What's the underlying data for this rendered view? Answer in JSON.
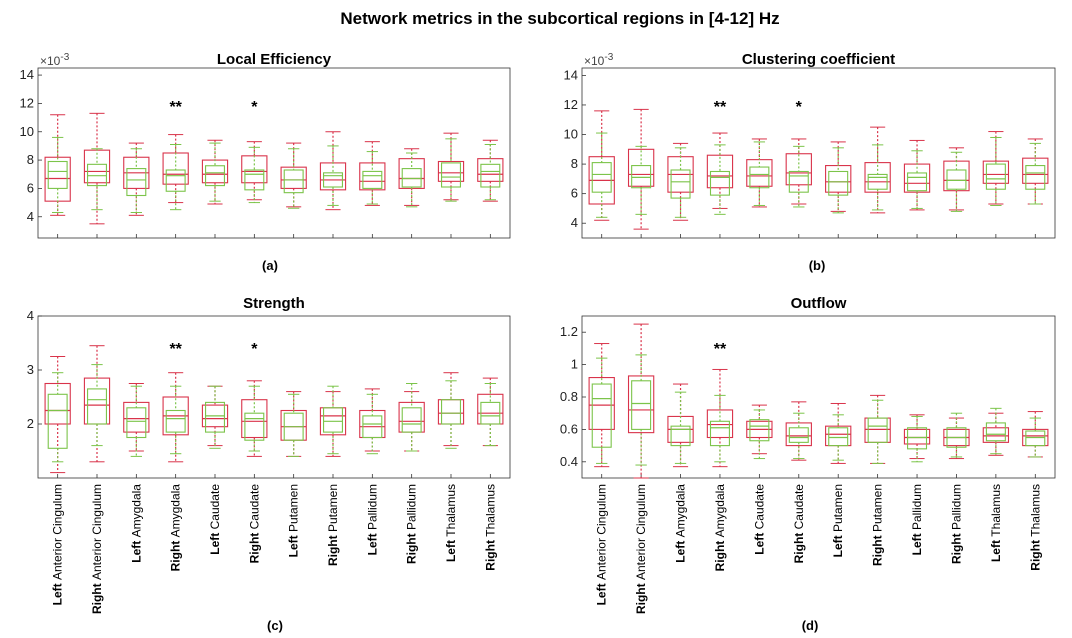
{
  "figure": {
    "title": "Network metrics in the subcortical regions in [4-12] Hz",
    "colors": {
      "red": "#d9334a",
      "green": "#7cc44a",
      "axis": "#333333"
    }
  },
  "categories": [
    {
      "bold": "Left",
      "rest": "Anterior Cingulum"
    },
    {
      "bold": "Right",
      "rest": "Anterior Cingulum"
    },
    {
      "bold": "Left",
      "rest": "Amygdala"
    },
    {
      "bold": "Right",
      "rest": "Amygdala"
    },
    {
      "bold": "Left",
      "rest": "Caudate"
    },
    {
      "bold": "Right",
      "rest": "Caudate"
    },
    {
      "bold": "Left",
      "rest": "Putamen"
    },
    {
      "bold": "Right",
      "rest": "Putamen"
    },
    {
      "bold": "Left",
      "rest": "Pallidum"
    },
    {
      "bold": "Right",
      "rest": "Pallidum"
    },
    {
      "bold": "Left",
      "rest": "Thalamus"
    },
    {
      "bold": "Right",
      "rest": "Thalamus"
    }
  ],
  "chart_data": [
    {
      "type": "box",
      "title": "Local Efficiency",
      "panel_label": "(a)",
      "multiplier": "×10",
      "multiplier_exp": "-3",
      "ylim": [
        2.5,
        14.5
      ],
      "yticks": [
        4,
        6,
        8,
        10,
        12,
        14
      ],
      "significance": [
        {
          "index": 3,
          "text": "**"
        },
        {
          "index": 5,
          "text": "*"
        }
      ],
      "series": [
        {
          "group": "red",
          "boxes": [
            {
              "min": 4.1,
              "q1": 5.1,
              "median": 6.7,
              "q3": 8.2,
              "max": 11.2
            },
            {
              "min": 3.5,
              "q1": 6.4,
              "median": 7.2,
              "q3": 8.7,
              "max": 11.3
            },
            {
              "min": 4.1,
              "q1": 6.0,
              "median": 7.1,
              "q3": 8.2,
              "max": 9.2
            },
            {
              "min": 5.0,
              "q1": 6.3,
              "median": 7.0,
              "q3": 8.5,
              "max": 9.8
            },
            {
              "min": 4.9,
              "q1": 6.4,
              "median": 7.0,
              "q3": 8.0,
              "max": 9.4
            },
            {
              "min": 5.2,
              "q1": 6.4,
              "median": 7.2,
              "q3": 8.3,
              "max": 9.3
            },
            {
              "min": 4.7,
              "q1": 6.0,
              "median": 6.6,
              "q3": 7.5,
              "max": 9.2
            },
            {
              "min": 4.5,
              "q1": 5.9,
              "median": 6.6,
              "q3": 7.8,
              "max": 10.0
            },
            {
              "min": 4.8,
              "q1": 5.9,
              "median": 6.5,
              "q3": 7.8,
              "max": 9.3
            },
            {
              "min": 4.8,
              "q1": 6.0,
              "median": 6.7,
              "q3": 8.1,
              "max": 8.8
            },
            {
              "min": 5.2,
              "q1": 6.5,
              "median": 7.1,
              "q3": 7.9,
              "max": 9.9
            },
            {
              "min": 5.1,
              "q1": 6.5,
              "median": 7.0,
              "q3": 8.1,
              "max": 9.4
            }
          ]
        },
        {
          "group": "green",
          "boxes": [
            {
              "min": 4.3,
              "q1": 6.0,
              "median": 7.2,
              "q3": 7.9,
              "max": 9.6
            },
            {
              "min": 4.5,
              "q1": 6.2,
              "median": 6.9,
              "q3": 7.7,
              "max": 8.8
            },
            {
              "min": 4.3,
              "q1": 5.5,
              "median": 6.6,
              "q3": 7.4,
              "max": 8.8
            },
            {
              "min": 4.5,
              "q1": 5.8,
              "median": 6.9,
              "q3": 7.3,
              "max": 9.1
            },
            {
              "min": 5.1,
              "q1": 6.2,
              "median": 7.1,
              "q3": 7.6,
              "max": 9.2
            },
            {
              "min": 5.0,
              "q1": 5.9,
              "median": 7.0,
              "q3": 7.3,
              "max": 8.9
            },
            {
              "min": 4.6,
              "q1": 5.7,
              "median": 6.6,
              "q3": 7.3,
              "max": 8.8
            },
            {
              "min": 4.8,
              "q1": 6.1,
              "median": 6.9,
              "q3": 7.1,
              "max": 9.0
            },
            {
              "min": 4.9,
              "q1": 6.0,
              "median": 6.9,
              "q3": 7.2,
              "max": 8.6
            },
            {
              "min": 4.7,
              "q1": 6.1,
              "median": 6.7,
              "q3": 7.4,
              "max": 8.5
            },
            {
              "min": 5.1,
              "q1": 6.1,
              "median": 6.8,
              "q3": 7.8,
              "max": 9.5
            },
            {
              "min": 5.2,
              "q1": 6.1,
              "median": 7.2,
              "q3": 7.7,
              "max": 9.1
            }
          ]
        }
      ]
    },
    {
      "type": "box",
      "title": "Clustering coefficient",
      "panel_label": "(b)",
      "multiplier": "×10",
      "multiplier_exp": "-3",
      "ylim": [
        3,
        14.5
      ],
      "yticks": [
        4,
        6,
        8,
        10,
        12,
        14
      ],
      "significance": [
        {
          "index": 3,
          "text": "**"
        },
        {
          "index": 5,
          "text": "*"
        }
      ],
      "series": [
        {
          "group": "red",
          "boxes": [
            {
              "min": 4.2,
              "q1": 5.3,
              "median": 6.9,
              "q3": 8.5,
              "max": 11.6
            },
            {
              "min": 3.6,
              "q1": 6.5,
              "median": 7.3,
              "q3": 9.0,
              "max": 11.7
            },
            {
              "min": 4.2,
              "q1": 6.1,
              "median": 7.3,
              "q3": 8.5,
              "max": 9.4
            },
            {
              "min": 5.0,
              "q1": 6.4,
              "median": 7.2,
              "q3": 8.6,
              "max": 10.1
            },
            {
              "min": 5.1,
              "q1": 6.5,
              "median": 7.2,
              "q3": 8.3,
              "max": 9.7
            },
            {
              "min": 5.3,
              "q1": 6.6,
              "median": 7.4,
              "q3": 8.7,
              "max": 9.7
            },
            {
              "min": 4.8,
              "q1": 6.1,
              "median": 6.8,
              "q3": 7.9,
              "max": 9.5
            },
            {
              "min": 4.7,
              "q1": 6.1,
              "median": 6.8,
              "q3": 8.1,
              "max": 10.5
            },
            {
              "min": 4.9,
              "q1": 6.1,
              "median": 6.7,
              "q3": 8.0,
              "max": 9.6
            },
            {
              "min": 4.9,
              "q1": 6.2,
              "median": 6.9,
              "q3": 8.2,
              "max": 9.1
            },
            {
              "min": 5.3,
              "q1": 6.7,
              "median": 7.3,
              "q3": 8.2,
              "max": 10.2
            },
            {
              "min": 5.3,
              "q1": 6.7,
              "median": 7.3,
              "q3": 8.4,
              "max": 9.7
            }
          ]
        },
        {
          "group": "green",
          "boxes": [
            {
              "min": 4.4,
              "q1": 6.1,
              "median": 7.3,
              "q3": 8.1,
              "max": 10.1
            },
            {
              "min": 4.6,
              "q1": 6.4,
              "median": 7.1,
              "q3": 7.9,
              "max": 9.2
            },
            {
              "min": 4.4,
              "q1": 5.7,
              "median": 6.8,
              "q3": 7.6,
              "max": 9.1
            },
            {
              "min": 4.6,
              "q1": 5.9,
              "median": 7.1,
              "q3": 7.5,
              "max": 9.3
            },
            {
              "min": 5.2,
              "q1": 6.4,
              "median": 7.3,
              "q3": 7.8,
              "max": 9.5
            },
            {
              "min": 5.1,
              "q1": 6.1,
              "median": 7.2,
              "q3": 7.5,
              "max": 9.2
            },
            {
              "min": 4.7,
              "q1": 5.9,
              "median": 6.8,
              "q3": 7.5,
              "max": 9.1
            },
            {
              "min": 4.9,
              "q1": 6.3,
              "median": 7.1,
              "q3": 7.3,
              "max": 9.3
            },
            {
              "min": 5.0,
              "q1": 6.2,
              "median": 7.1,
              "q3": 7.4,
              "max": 8.9
            },
            {
              "min": 4.8,
              "q1": 6.3,
              "median": 6.9,
              "q3": 7.6,
              "max": 8.8
            },
            {
              "min": 5.2,
              "q1": 6.3,
              "median": 7.0,
              "q3": 8.0,
              "max": 9.8
            },
            {
              "min": 5.3,
              "q1": 6.3,
              "median": 7.4,
              "q3": 7.9,
              "max": 9.4
            }
          ]
        }
      ]
    },
    {
      "type": "box",
      "title": "Strength",
      "panel_label": "(c)",
      "ylim": [
        1,
        4
      ],
      "yticks": [
        2,
        3,
        4
      ],
      "significance": [
        {
          "index": 3,
          "text": "**"
        },
        {
          "index": 5,
          "text": "*"
        }
      ],
      "series": [
        {
          "group": "red",
          "boxes": [
            {
              "min": 1.1,
              "q1": 2.0,
              "median": 2.25,
              "q3": 2.75,
              "max": 3.25
            },
            {
              "min": 1.3,
              "q1": 2.0,
              "median": 2.35,
              "q3": 2.85,
              "max": 3.45
            },
            {
              "min": 1.5,
              "q1": 1.85,
              "median": 2.1,
              "q3": 2.4,
              "max": 2.75
            },
            {
              "min": 1.3,
              "q1": 1.8,
              "median": 2.15,
              "q3": 2.5,
              "max": 2.95
            },
            {
              "min": 1.6,
              "q1": 1.95,
              "median": 2.1,
              "q3": 2.35,
              "max": 2.7
            },
            {
              "min": 1.4,
              "q1": 1.75,
              "median": 2.05,
              "q3": 2.45,
              "max": 2.8
            },
            {
              "min": 1.4,
              "q1": 1.7,
              "median": 1.95,
              "q3": 2.25,
              "max": 2.6
            },
            {
              "min": 1.4,
              "q1": 1.8,
              "median": 2.15,
              "q3": 2.3,
              "max": 2.6
            },
            {
              "min": 1.5,
              "q1": 1.75,
              "median": 1.95,
              "q3": 2.25,
              "max": 2.65
            },
            {
              "min": 1.5,
              "q1": 1.85,
              "median": 2.05,
              "q3": 2.4,
              "max": 2.6
            },
            {
              "min": 1.6,
              "q1": 2.0,
              "median": 2.2,
              "q3": 2.45,
              "max": 2.95
            },
            {
              "min": 1.6,
              "q1": 2.0,
              "median": 2.2,
              "q3": 2.55,
              "max": 2.85
            }
          ]
        },
        {
          "group": "green",
          "boxes": [
            {
              "min": 1.3,
              "q1": 1.55,
              "median": 2.25,
              "q3": 2.55,
              "max": 2.95
            },
            {
              "min": 1.6,
              "q1": 2.0,
              "median": 2.45,
              "q3": 2.65,
              "max": 3.1
            },
            {
              "min": 1.4,
              "q1": 1.75,
              "median": 2.05,
              "q3": 2.3,
              "max": 2.7
            },
            {
              "min": 1.45,
              "q1": 1.85,
              "median": 2.1,
              "q3": 2.25,
              "max": 2.7
            },
            {
              "min": 1.55,
              "q1": 1.85,
              "median": 2.15,
              "q3": 2.4,
              "max": 2.7
            },
            {
              "min": 1.5,
              "q1": 1.7,
              "median": 2.1,
              "q3": 2.2,
              "max": 2.7
            },
            {
              "min": 1.4,
              "q1": 1.7,
              "median": 1.95,
              "q3": 2.2,
              "max": 2.55
            },
            {
              "min": 1.45,
              "q1": 1.85,
              "median": 2.05,
              "q3": 2.3,
              "max": 2.7
            },
            {
              "min": 1.45,
              "q1": 1.75,
              "median": 2.0,
              "q3": 2.15,
              "max": 2.55
            },
            {
              "min": 1.5,
              "q1": 1.85,
              "median": 2.0,
              "q3": 2.3,
              "max": 2.75
            },
            {
              "min": 1.55,
              "q1": 2.0,
              "median": 2.2,
              "q3": 2.45,
              "max": 2.8
            },
            {
              "min": 1.6,
              "q1": 2.0,
              "median": 2.15,
              "q3": 2.4,
              "max": 2.75
            }
          ]
        }
      ]
    },
    {
      "type": "box",
      "title": "Outflow",
      "panel_label": "(d)",
      "ylim": [
        0.3,
        1.3
      ],
      "yticks": [
        0.4,
        0.6,
        0.8,
        1,
        1.2
      ],
      "significance": [
        {
          "index": 3,
          "text": "**"
        }
      ],
      "series": [
        {
          "group": "red",
          "boxes": [
            {
              "min": 0.37,
              "q1": 0.6,
              "median": 0.75,
              "q3": 0.92,
              "max": 1.13
            },
            {
              "min": 0.3,
              "q1": 0.58,
              "median": 0.72,
              "q3": 0.93,
              "max": 1.25
            },
            {
              "min": 0.37,
              "q1": 0.52,
              "median": 0.6,
              "q3": 0.68,
              "max": 0.88
            },
            {
              "min": 0.37,
              "q1": 0.55,
              "median": 0.63,
              "q3": 0.72,
              "max": 0.97
            },
            {
              "min": 0.45,
              "q1": 0.55,
              "median": 0.6,
              "q3": 0.65,
              "max": 0.75
            },
            {
              "min": 0.41,
              "q1": 0.5,
              "median": 0.56,
              "q3": 0.64,
              "max": 0.77
            },
            {
              "min": 0.39,
              "q1": 0.5,
              "median": 0.57,
              "q3": 0.62,
              "max": 0.76
            },
            {
              "min": 0.39,
              "q1": 0.52,
              "median": 0.6,
              "q3": 0.67,
              "max": 0.81
            },
            {
              "min": 0.42,
              "q1": 0.51,
              "median": 0.55,
              "q3": 0.6,
              "max": 0.69
            },
            {
              "min": 0.42,
              "q1": 0.5,
              "median": 0.55,
              "q3": 0.6,
              "max": 0.67
            },
            {
              "min": 0.44,
              "q1": 0.52,
              "median": 0.56,
              "q3": 0.61,
              "max": 0.7
            },
            {
              "min": 0.43,
              "q1": 0.5,
              "median": 0.56,
              "q3": 0.6,
              "max": 0.71
            }
          ]
        },
        {
          "group": "green",
          "boxes": [
            {
              "min": 0.39,
              "q1": 0.49,
              "median": 0.79,
              "q3": 0.88,
              "max": 1.04
            },
            {
              "min": 0.38,
              "q1": 0.6,
              "median": 0.76,
              "q3": 0.9,
              "max": 1.06
            },
            {
              "min": 0.39,
              "q1": 0.5,
              "median": 0.6,
              "q3": 0.62,
              "max": 0.83
            },
            {
              "min": 0.4,
              "q1": 0.5,
              "median": 0.61,
              "q3": 0.65,
              "max": 0.81
            },
            {
              "min": 0.42,
              "q1": 0.53,
              "median": 0.62,
              "q3": 0.66,
              "max": 0.72
            },
            {
              "min": 0.42,
              "q1": 0.52,
              "median": 0.55,
              "q3": 0.61,
              "max": 0.7
            },
            {
              "min": 0.41,
              "q1": 0.5,
              "median": 0.55,
              "q3": 0.61,
              "max": 0.69
            },
            {
              "min": 0.39,
              "q1": 0.52,
              "median": 0.62,
              "q3": 0.67,
              "max": 0.78
            },
            {
              "min": 0.4,
              "q1": 0.48,
              "median": 0.55,
              "q3": 0.61,
              "max": 0.68
            },
            {
              "min": 0.43,
              "q1": 0.49,
              "median": 0.55,
              "q3": 0.61,
              "max": 0.7
            },
            {
              "min": 0.45,
              "q1": 0.53,
              "median": 0.57,
              "q3": 0.64,
              "max": 0.73
            },
            {
              "min": 0.43,
              "q1": 0.5,
              "median": 0.55,
              "q3": 0.59,
              "max": 0.67
            }
          ]
        }
      ]
    }
  ]
}
